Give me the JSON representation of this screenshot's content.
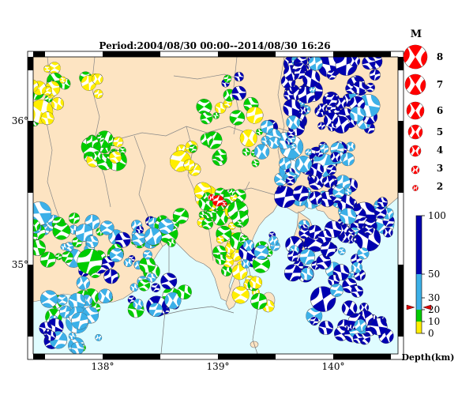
{
  "title": "Period:2004/08/30 00:00--2014/08/30 16:26",
  "lon_ticks": [
    "138°",
    "139°",
    "140°"
  ],
  "lat_ticks": [
    "36°",
    "35°"
  ],
  "magnitude_legend": {
    "heading": "M",
    "items": [
      "8",
      "7",
      "6",
      "5",
      "4",
      "3",
      "2"
    ]
  },
  "depth_legend": {
    "title": "Depth(km)",
    "ticks": [
      "100",
      "50",
      "30",
      "20",
      "10",
      "0"
    ],
    "colors": {
      "0-10": "#ffee00",
      "10-20": "#00cc00",
      "20-50": "#3cb0e8",
      "50-100": "#0000b0"
    },
    "marker_value": 25
  },
  "map": {
    "land_color": "#fde4c2",
    "sea_color": "#dffcff",
    "mainshock_color": "#ff0000"
  }
}
